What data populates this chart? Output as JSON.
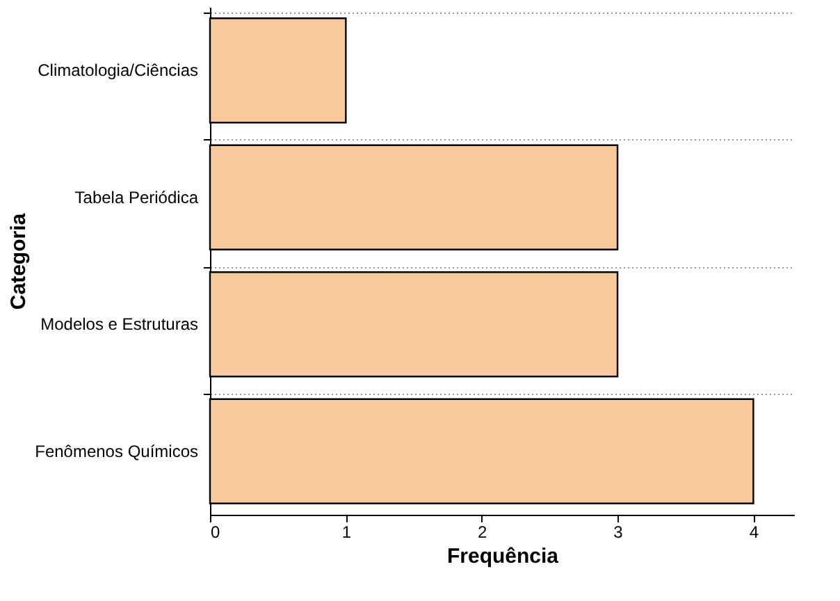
{
  "chart_data": {
    "type": "bar",
    "orientation": "horizontal",
    "xlabel": "Frequência",
    "ylabel": "Categoria",
    "categories": [
      "Climatologia/Ciências",
      "Tabela Periódica",
      "Modelos e Estruturas",
      "Fenômenos Químicos"
    ],
    "values": [
      1,
      3,
      3,
      4
    ],
    "color": "#f9c89b",
    "xlim": [
      0,
      4.3
    ],
    "xticks": [
      0,
      1,
      2,
      3,
      4
    ],
    "grid": "y"
  }
}
